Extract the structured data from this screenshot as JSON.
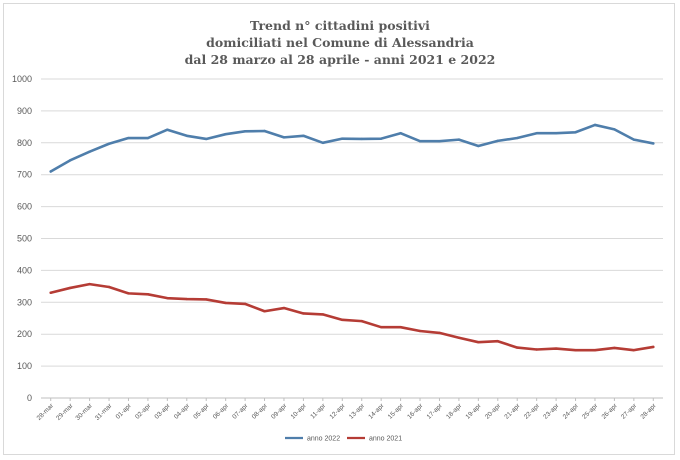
{
  "chart_data": {
    "type": "line",
    "title_lines": [
      "Trend n° cittadini positivi",
      "domiciliati nel Comune di Alessandria",
      "dal 28 marzo al 28 aprile - anni 2021 e 2022"
    ],
    "xlabel": "",
    "ylabel": "",
    "ylim": [
      0,
      1000
    ],
    "yticks": [
      "0",
      "100",
      "200",
      "300",
      "400",
      "500",
      "600",
      "700",
      "800",
      "900",
      "1000"
    ],
    "grid": true,
    "legend_position": "bottom",
    "categories": [
      "28-mar",
      "29-mar",
      "30-mar",
      "31-mar",
      "01-apr",
      "02-apr",
      "03-apr",
      "04-apr",
      "05-apr",
      "06-apr",
      "07-apr",
      "08-apr",
      "09-apr",
      "10-apr",
      "11-apr",
      "12-apr",
      "13-apr",
      "14-apr",
      "15-apr",
      "16-apr",
      "17-apr",
      "18-apr",
      "19-apr",
      "20-apr",
      "21-apr",
      "22-apr",
      "23-apr",
      "24-apr",
      "25-apr",
      "26-apr",
      "27-apr",
      "28-apr"
    ],
    "series": [
      {
        "name": "anno 2022",
        "color": "#4f7eab",
        "values": [
          710,
          745,
          772,
          797,
          815,
          815,
          841,
          822,
          812,
          827,
          836,
          837,
          817,
          822,
          800,
          813,
          812,
          813,
          830,
          805,
          805,
          810,
          790,
          806,
          815,
          830,
          830,
          833,
          856,
          842,
          810,
          798
        ]
      },
      {
        "name": "anno 2021",
        "color": "#b53c35",
        "values": [
          330,
          345,
          357,
          348,
          328,
          325,
          313,
          310,
          309,
          298,
          295,
          272,
          282,
          265,
          262,
          245,
          241,
          222,
          222,
          210,
          204,
          189,
          175,
          178,
          158,
          152,
          155,
          150,
          150,
          157,
          150,
          160
        ]
      }
    ]
  }
}
